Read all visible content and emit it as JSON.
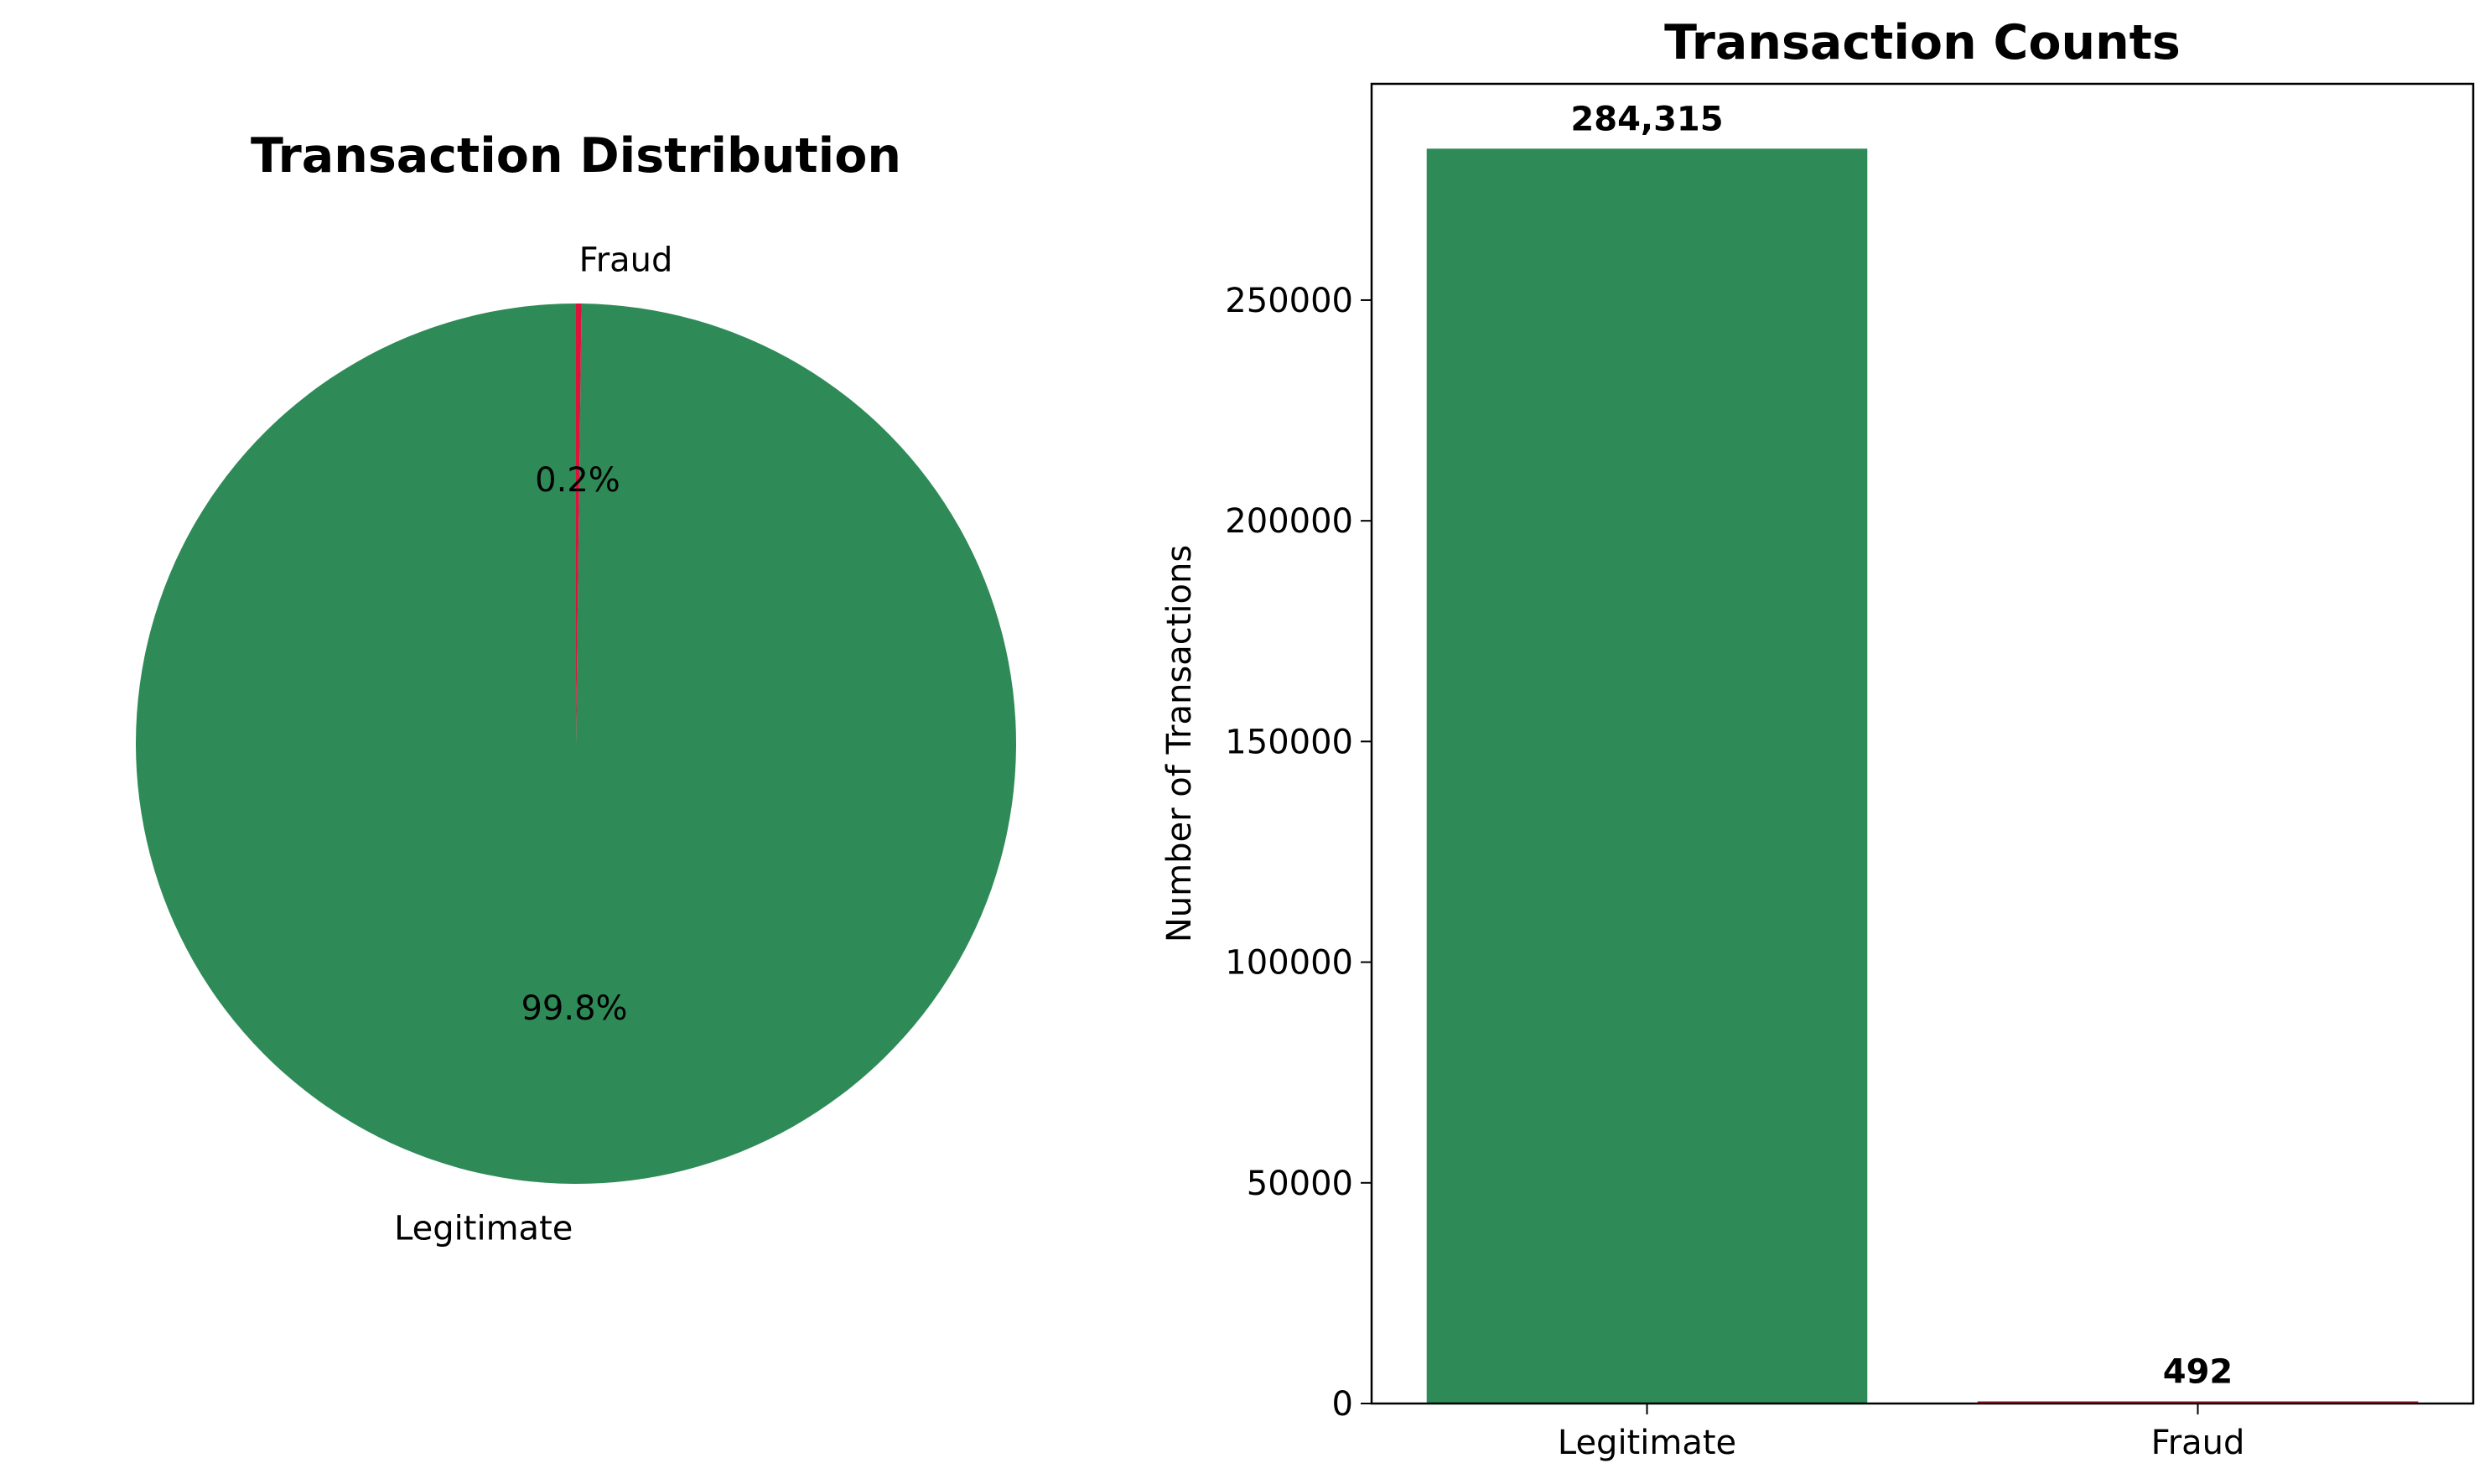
{
  "chart_data": [
    {
      "type": "pie",
      "title": "Transaction Distribution",
      "categories": [
        "Legitimate",
        "Fraud"
      ],
      "values": [
        99.8,
        0.2
      ],
      "value_labels": [
        "99.8%",
        "0.2%"
      ],
      "colors": [
        "#2e8b57",
        "#dc143c"
      ]
    },
    {
      "type": "bar",
      "title": "Transaction Counts",
      "categories": [
        "Legitimate",
        "Fraud"
      ],
      "values": [
        284315,
        492
      ],
      "value_labels": [
        "284,315",
        "492"
      ],
      "colors": [
        "#2e8b57",
        "#dc143c"
      ],
      "xlabel": "",
      "ylabel": "Number of Transactions",
      "ylim": [
        0,
        299000
      ],
      "yticks": [
        0,
        50000,
        100000,
        150000,
        200000,
        250000
      ],
      "ytick_labels": [
        "0",
        "50000",
        "100000",
        "150000",
        "200000",
        "250000"
      ],
      "grid": false
    }
  ]
}
